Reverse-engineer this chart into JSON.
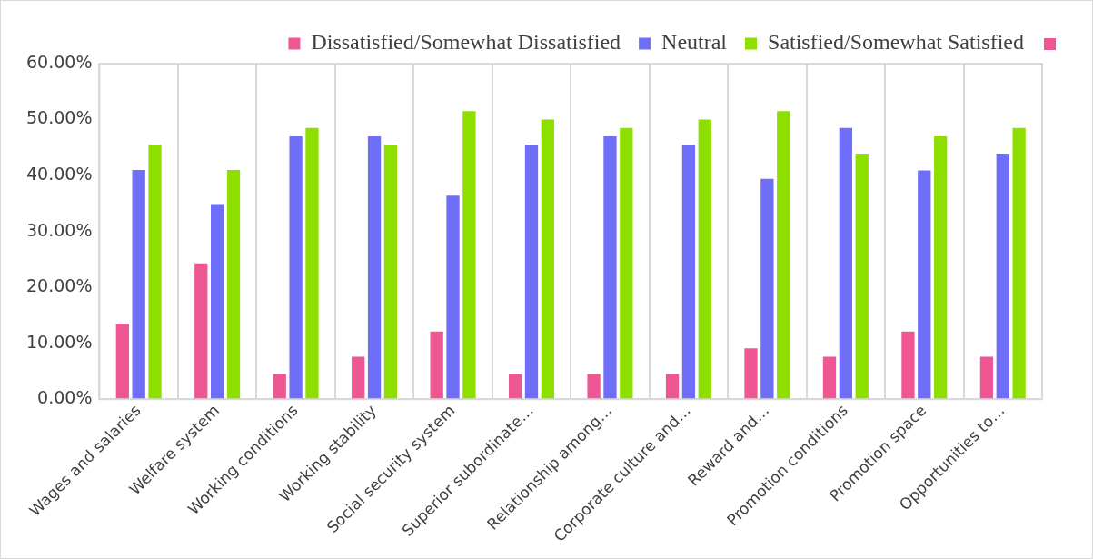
{
  "chart_data": {
    "type": "bar",
    "categories": [
      "Wages and salaries",
      "Welfare system",
      "Working conditions",
      "Working stability",
      "Social security system",
      "Superior subordinate…",
      "Relationship among…",
      "Corporate culture and…",
      "Reward and…",
      "Promotion conditions",
      "Promotion space",
      "Opportunities to…"
    ],
    "series": [
      {
        "name": "Dissatisfied/Somewhat Dissatisfied",
        "color": "#ee5794",
        "values": [
          13.5,
          24.3,
          4.5,
          7.6,
          12.1,
          4.5,
          4.5,
          4.5,
          9.1,
          7.6,
          12.1,
          7.6
        ]
      },
      {
        "name": "Neutral",
        "color": "#6e6ef8",
        "values": [
          41,
          34.9,
          47,
          47,
          36.4,
          45.5,
          47,
          45.5,
          39.4,
          48.5,
          40.9,
          43.9
        ]
      },
      {
        "name": "Satisfied/Somewhat Satisfied",
        "color": "#8ede00",
        "values": [
          45.5,
          41,
          48.5,
          45.5,
          51.5,
          50,
          48.5,
          50,
          51.5,
          43.9,
          47,
          48.5
        ]
      }
    ],
    "ylim": [
      0,
      60
    ],
    "yticks": [
      {
        "value": 0,
        "label": "0.00%"
      },
      {
        "value": 10,
        "label": "10.00%"
      },
      {
        "value": 20,
        "label": "20.00%"
      },
      {
        "value": 30,
        "label": "30.00%"
      },
      {
        "value": 40,
        "label": "40.00%"
      },
      {
        "value": 50,
        "label": "50.00%"
      },
      {
        "value": 60,
        "label": "60.00%"
      }
    ],
    "grid": "x",
    "legend": "top"
  }
}
